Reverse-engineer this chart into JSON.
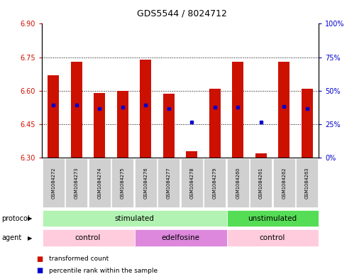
{
  "title": "GDS5544 / 8024712",
  "samples": [
    "GSM1084272",
    "GSM1084273",
    "GSM1084274",
    "GSM1084275",
    "GSM1084276",
    "GSM1084277",
    "GSM1084278",
    "GSM1084279",
    "GSM1084260",
    "GSM1084261",
    "GSM1084262",
    "GSM1084263"
  ],
  "bar_tops": [
    6.67,
    6.73,
    6.59,
    6.6,
    6.74,
    6.585,
    6.33,
    6.61,
    6.73,
    6.32,
    6.73,
    6.61
  ],
  "bar_bottom": 6.3,
  "blue_y": [
    6.535,
    6.535,
    6.52,
    6.525,
    6.535,
    6.52,
    6.46,
    6.525,
    6.525,
    6.46,
    6.53,
    6.52
  ],
  "ylim_left": [
    6.3,
    6.9
  ],
  "ylim_right": [
    0,
    100
  ],
  "yticks_left": [
    6.3,
    6.45,
    6.6,
    6.75,
    6.9
  ],
  "yticks_right": [
    0,
    25,
    50,
    75,
    100
  ],
  "ytick_right_labels": [
    "0%",
    "25%",
    "50%",
    "75%",
    "100%"
  ],
  "bar_color": "#cc1100",
  "blue_color": "#0000cc",
  "bg_color": "#ffffff",
  "plot_bg": "#ffffff",
  "ylabel_left_color": "#cc1100",
  "ylabel_right_color": "#0000cc",
  "stimulated_color": "#b2f2b2",
  "unstimulated_color": "#55dd55",
  "control_color": "#ffccdd",
  "edelfosine_color": "#dd88dd",
  "xtick_bg": "#d0d0d0",
  "legend_items": [
    {
      "label": "transformed count",
      "color": "#cc1100"
    },
    {
      "label": "percentile rank within the sample",
      "color": "#0000cc"
    }
  ],
  "bar_width": 0.5
}
